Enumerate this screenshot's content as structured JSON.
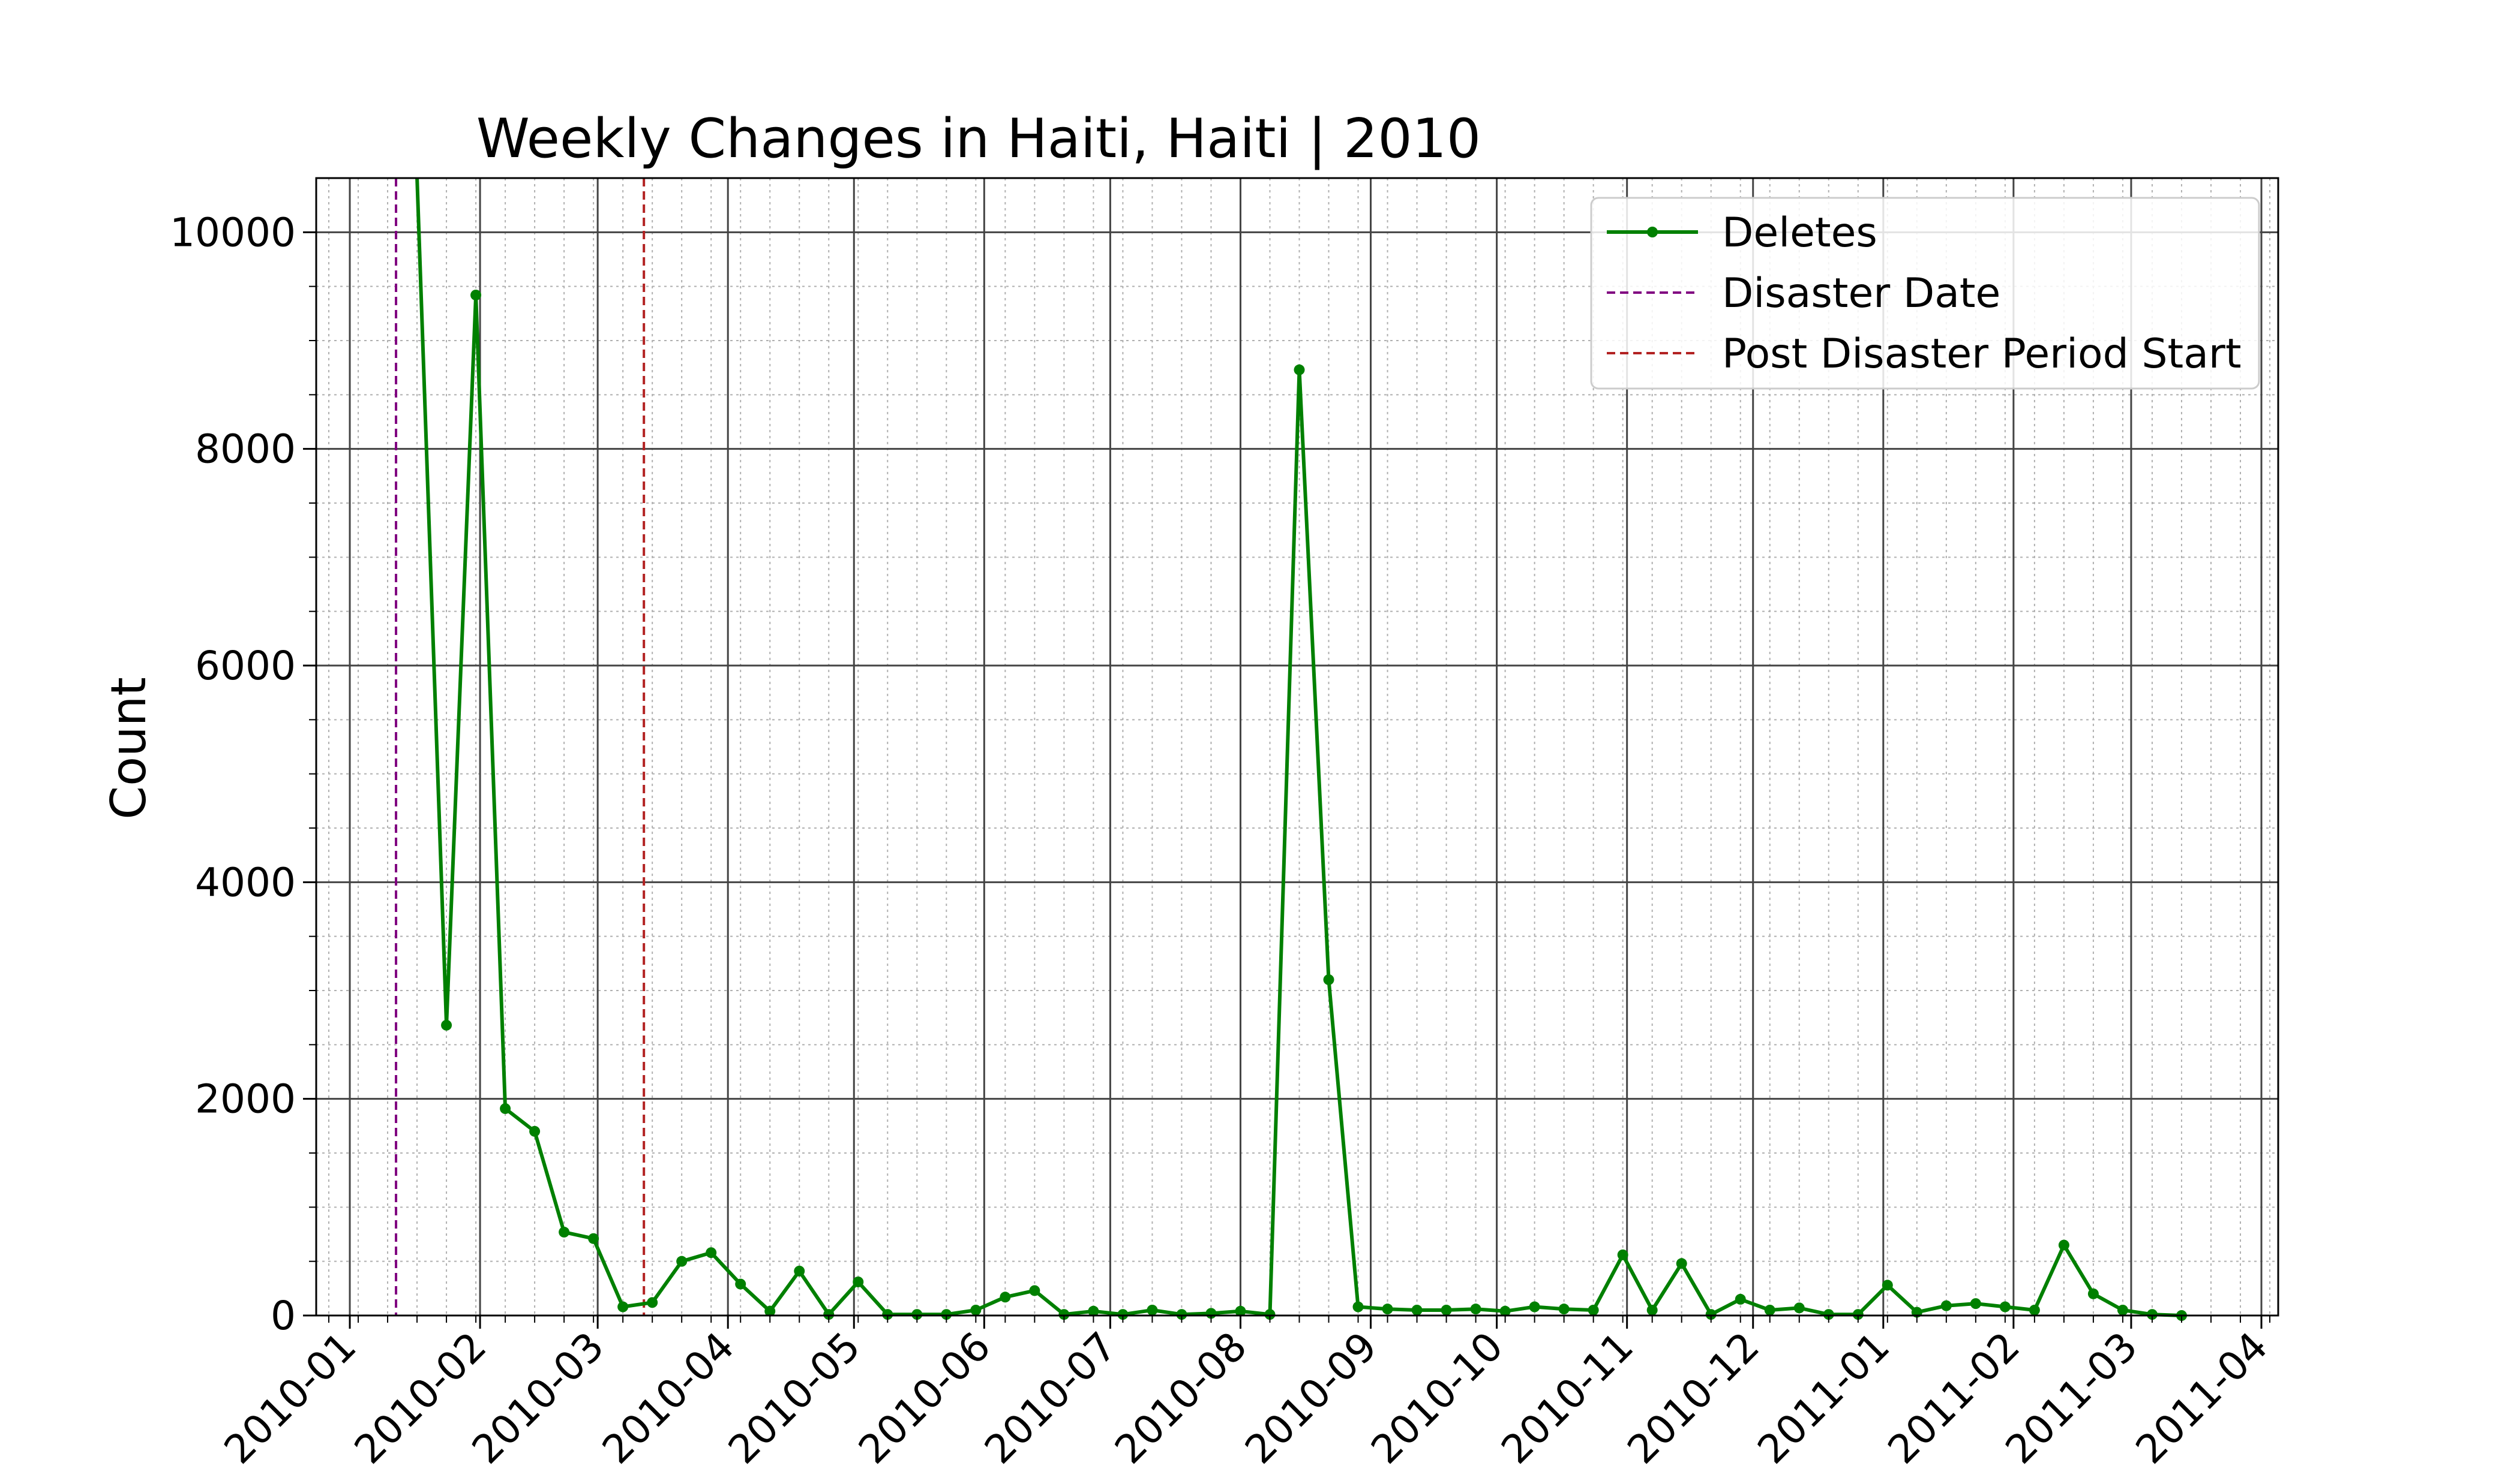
{
  "chart_data": {
    "type": "line",
    "title": "Weekly Changes in Haiti, Haiti | 2010",
    "xlabel": "",
    "ylabel": "Count",
    "ylim": [
      0,
      10500
    ],
    "xlim": [
      "2009-12-24",
      "2011-04-05"
    ],
    "yticks": [
      0,
      2000,
      4000,
      6000,
      8000,
      10000
    ],
    "ytick_labels": [
      "0",
      "2000",
      "4000",
      "6000",
      "8000",
      "10000"
    ],
    "xticks": [
      "2010-01-01",
      "2010-02-01",
      "2010-03-01",
      "2010-04-01",
      "2010-05-01",
      "2010-06-01",
      "2010-07-01",
      "2010-08-01",
      "2010-09-01",
      "2010-10-01",
      "2010-11-01",
      "2010-12-01",
      "2011-01-01",
      "2011-02-01",
      "2011-03-01",
      "2011-04-01"
    ],
    "xtick_labels": [
      "2010-01",
      "2010-02",
      "2010-03",
      "2010-04",
      "2010-05",
      "2010-06",
      "2010-07",
      "2010-08",
      "2010-09",
      "2010-10",
      "2010-11",
      "2010-12",
      "2011-01",
      "2011-02",
      "2011-03",
      "2011-04"
    ],
    "grid": {
      "major": true,
      "minor": true
    },
    "legend_position": "top-right",
    "series": [
      {
        "name": "Deletes",
        "color": "#008000",
        "marker": "circle",
        "x": [
          "2010-01-24",
          "2010-01-31",
          "2010-02-07",
          "2010-02-14",
          "2010-02-21",
          "2010-02-28",
          "2010-03-07",
          "2010-03-14",
          "2010-03-21",
          "2010-03-28",
          "2010-04-04",
          "2010-04-11",
          "2010-04-18",
          "2010-04-25",
          "2010-05-02",
          "2010-05-09",
          "2010-05-16",
          "2010-05-23",
          "2010-05-30",
          "2010-06-06",
          "2010-06-13",
          "2010-06-20",
          "2010-06-27",
          "2010-07-04",
          "2010-07-11",
          "2010-07-18",
          "2010-07-25",
          "2010-08-01",
          "2010-08-08",
          "2010-08-15",
          "2010-08-22",
          "2010-08-29",
          "2010-09-05",
          "2010-09-12",
          "2010-09-19",
          "2010-09-26",
          "2010-10-03",
          "2010-10-10",
          "2010-10-17",
          "2010-10-24",
          "2010-10-31",
          "2010-11-07",
          "2010-11-14",
          "2010-11-21",
          "2010-11-28",
          "2010-12-05",
          "2010-12-12",
          "2010-12-19",
          "2010-12-26",
          "2011-01-02",
          "2011-01-09",
          "2011-01-16",
          "2011-01-23",
          "2011-01-30",
          "2011-02-06",
          "2011-02-13",
          "2011-02-20",
          "2011-02-27",
          "2011-03-06",
          "2011-03-13"
        ],
        "values": [
          2680,
          9420,
          1910,
          1700,
          770,
          710,
          80,
          120,
          500,
          580,
          290,
          40,
          410,
          10,
          310,
          10,
          10,
          10,
          50,
          170,
          230,
          10,
          40,
          10,
          50,
          10,
          20,
          40,
          10,
          8730,
          3100,
          80,
          60,
          50,
          50,
          60,
          40,
          80,
          60,
          50,
          560,
          50,
          480,
          10,
          150,
          50,
          70,
          10,
          10,
          280,
          30,
          90,
          110,
          80,
          50,
          650,
          200,
          50,
          10,
          0
        ],
        "first_point": {
          "x": "2010-01-17",
          "y": 10500
        }
      }
    ],
    "vlines": [
      {
        "name": "Disaster Date",
        "x": "2010-01-12",
        "color": "#800080",
        "style": "dashed"
      },
      {
        "name": "Post Disaster Period Start",
        "x": "2010-03-12",
        "color": "#b22222",
        "style": "dashed"
      }
    ]
  }
}
